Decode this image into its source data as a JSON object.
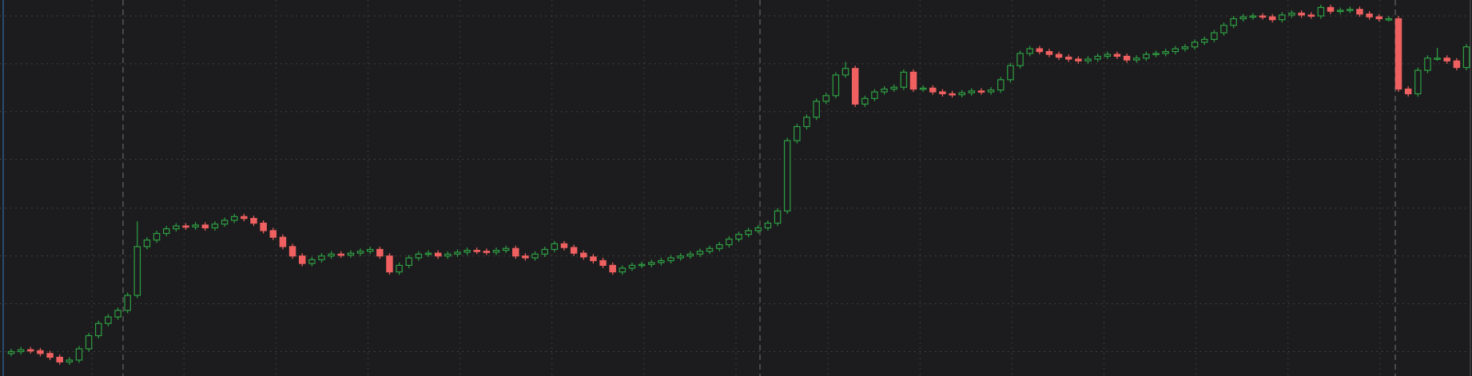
{
  "chart_data": {
    "type": "candlestick",
    "up_color": "#2ea043",
    "down_color": "#f06060",
    "grid": true,
    "ylim": [
      0,
      401
    ],
    "yticks": [
      26,
      77,
      128,
      179,
      231,
      282,
      333,
      384
    ],
    "open": [
      24,
      26,
      28,
      27,
      24,
      20,
      15,
      17,
      29,
      43,
      56,
      63,
      70,
      86,
      138,
      145,
      152,
      157,
      160,
      159,
      161,
      158,
      162,
      166,
      170,
      168,
      163,
      155,
      148,
      138,
      128,
      120,
      124,
      128,
      130,
      129,
      131,
      133,
      135,
      128,
      111,
      118,
      126,
      130,
      131,
      128,
      130,
      132,
      134,
      133,
      132,
      134,
      136,
      128,
      126,
      130,
      135,
      141,
      137,
      131,
      127,
      123,
      118,
      111,
      115,
      118,
      119,
      121,
      123,
      126,
      128,
      130,
      133,
      136,
      140,
      146,
      151,
      155,
      158,
      163,
      176,
      251,
      266,
      276,
      293,
      299,
      321,
      328,
      290,
      296,
      303,
      306,
      308,
      324,
      306,
      307,
      303,
      301,
      300,
      302,
      304,
      303,
      305,
      316,
      331,
      344,
      349,
      346,
      343,
      340,
      338,
      336,
      338,
      341,
      343,
      341,
      337,
      339,
      343,
      344,
      346,
      349,
      351,
      356,
      359,
      366,
      374,
      381,
      383,
      384,
      383,
      380,
      385,
      387,
      385,
      384,
      393,
      389,
      390,
      391,
      386,
      383,
      381,
      381,
      306,
      301,
      326,
      339,
      339,
      336,
      329
    ],
    "high": [
      29,
      31,
      31,
      30,
      27,
      23,
      20,
      32,
      46,
      59,
      66,
      73,
      89,
      165,
      148,
      155,
      160,
      163,
      163,
      164,
      164,
      165,
      169,
      173,
      173,
      171,
      166,
      158,
      151,
      141,
      131,
      127,
      131,
      133,
      133,
      134,
      136,
      138,
      138,
      131,
      121,
      129,
      133,
      134,
      134,
      133,
      135,
      137,
      137,
      136,
      137,
      139,
      139,
      131,
      133,
      138,
      144,
      144,
      140,
      134,
      130,
      126,
      121,
      118,
      121,
      122,
      124,
      126,
      129,
      131,
      133,
      136,
      139,
      143,
      149,
      154,
      158,
      161,
      166,
      179,
      254,
      269,
      279,
      296,
      302,
      324,
      335,
      331,
      299,
      306,
      309,
      311,
      327,
      327,
      310,
      310,
      306,
      304,
      305,
      307,
      307,
      308,
      319,
      334,
      347,
      352,
      352,
      349,
      346,
      343,
      341,
      341,
      344,
      346,
      346,
      344,
      342,
      346,
      347,
      349,
      352,
      354,
      359,
      362,
      369,
      377,
      384,
      386,
      387,
      387,
      386,
      388,
      390,
      390,
      388,
      396,
      396,
      393,
      394,
      394,
      389,
      386,
      384,
      384,
      309,
      329,
      342,
      350,
      342,
      339,
      354
    ],
    "low": [
      21,
      23,
      24,
      21,
      17,
      12,
      12,
      14,
      26,
      40,
      53,
      60,
      67,
      83,
      135,
      142,
      149,
      154,
      156,
      156,
      155,
      155,
      159,
      163,
      165,
      160,
      152,
      145,
      135,
      125,
      117,
      117,
      121,
      125,
      126,
      126,
      128,
      130,
      125,
      108,
      108,
      115,
      123,
      127,
      125,
      125,
      127,
      129,
      130,
      129,
      129,
      131,
      125,
      123,
      123,
      127,
      132,
      134,
      128,
      124,
      120,
      115,
      108,
      108,
      112,
      115,
      116,
      118,
      120,
      123,
      125,
      127,
      130,
      133,
      137,
      143,
      148,
      152,
      155,
      160,
      173,
      248,
      263,
      273,
      290,
      296,
      318,
      287,
      287,
      293,
      300,
      303,
      305,
      303,
      303,
      300,
      298,
      297,
      297,
      299,
      300,
      300,
      302,
      313,
      328,
      341,
      343,
      340,
      337,
      335,
      333,
      333,
      335,
      338,
      338,
      334,
      334,
      336,
      340,
      341,
      343,
      346,
      348,
      353,
      356,
      363,
      371,
      378,
      380,
      380,
      377,
      377,
      382,
      382,
      381,
      381,
      386,
      386,
      387,
      383,
      380,
      378,
      378,
      303,
      298,
      298,
      323,
      336,
      333,
      326,
      326
    ],
    "close": [
      26,
      28,
      27,
      24,
      20,
      15,
      17,
      29,
      43,
      56,
      63,
      70,
      86,
      138,
      145,
      152,
      157,
      160,
      159,
      161,
      158,
      162,
      166,
      170,
      168,
      163,
      155,
      148,
      138,
      128,
      120,
      124,
      128,
      130,
      129,
      131,
      133,
      135,
      128,
      111,
      118,
      126,
      130,
      131,
      128,
      130,
      132,
      134,
      133,
      132,
      134,
      136,
      128,
      126,
      130,
      135,
      141,
      137,
      131,
      127,
      123,
      118,
      111,
      115,
      118,
      119,
      121,
      123,
      126,
      128,
      130,
      133,
      136,
      140,
      146,
      151,
      155,
      158,
      163,
      176,
      251,
      266,
      276,
      293,
      299,
      321,
      328,
      290,
      296,
      303,
      306,
      308,
      324,
      306,
      307,
      303,
      301,
      300,
      302,
      304,
      303,
      305,
      316,
      331,
      344,
      349,
      346,
      343,
      340,
      338,
      336,
      338,
      341,
      343,
      341,
      337,
      339,
      343,
      344,
      346,
      349,
      351,
      356,
      359,
      366,
      374,
      381,
      383,
      384,
      383,
      380,
      385,
      387,
      385,
      384,
      393,
      389,
      390,
      391,
      386,
      383,
      381,
      381,
      306,
      301,
      326,
      339,
      339,
      336,
      329,
      351
    ]
  }
}
